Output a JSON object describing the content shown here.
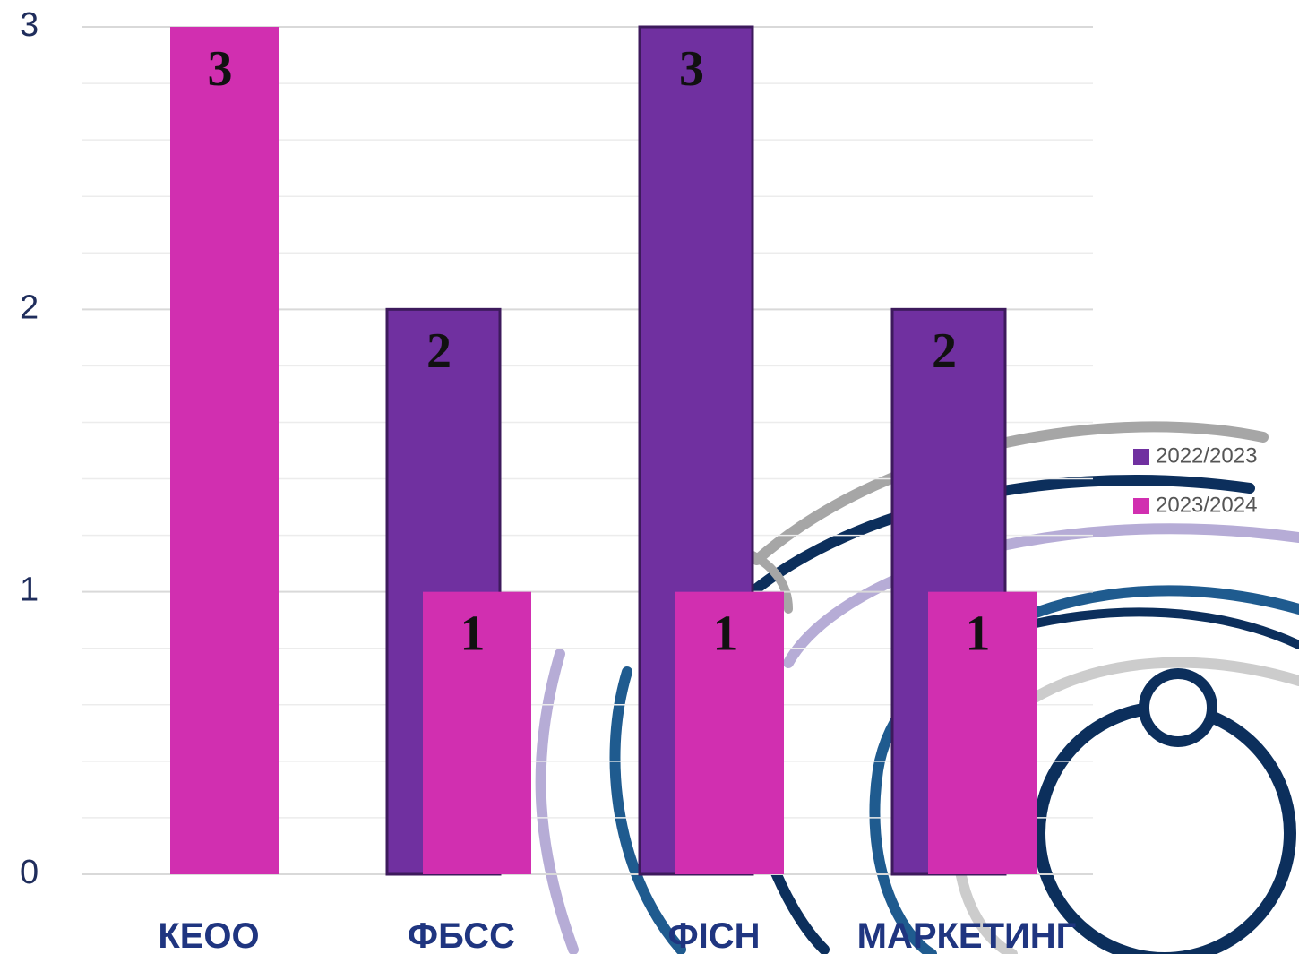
{
  "chart_data": {
    "type": "bar",
    "categories": [
      "КЕОО",
      "ФБСС",
      "ФІСН",
      "МАРКЕТИНГ"
    ],
    "series": [
      {
        "name": "2022/2023",
        "color": "#7030a0",
        "values": [
          null,
          2,
          3,
          2
        ]
      },
      {
        "name": "2023/2024",
        "color": "#d12fb0",
        "values": [
          3,
          1,
          1,
          1
        ]
      }
    ],
    "ylim": [
      0,
      3
    ],
    "yticks": [
      0,
      1,
      2,
      3
    ],
    "grid": true,
    "legend": "right"
  }
}
